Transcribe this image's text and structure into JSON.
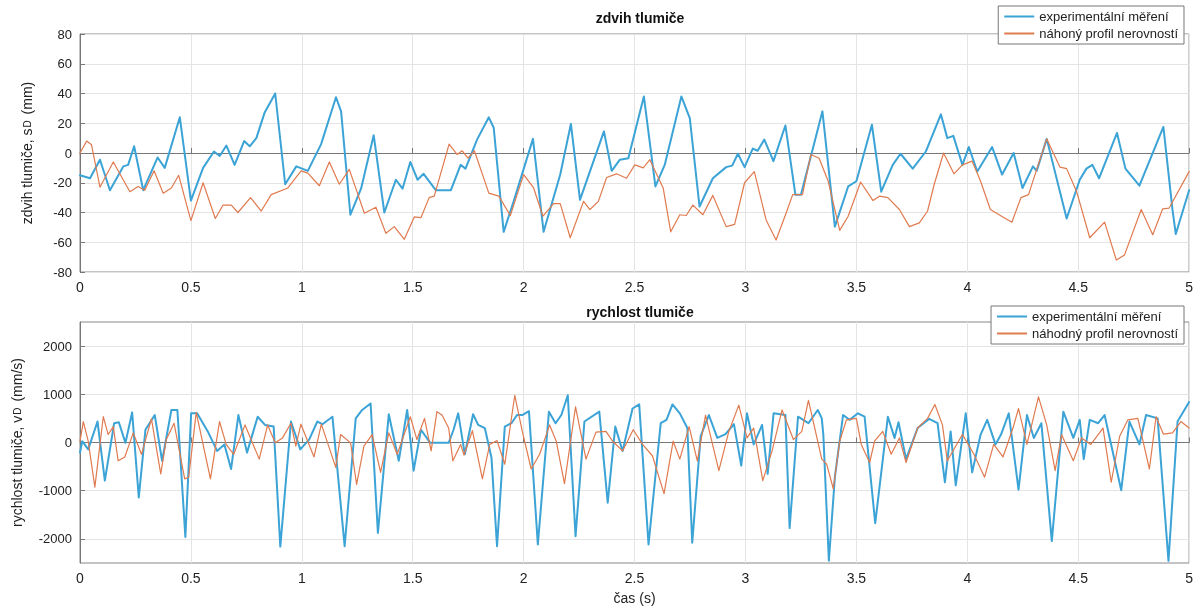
{
  "chart_data": [
    {
      "type": "line",
      "title": "zdvih tlumiče",
      "ylabel": "zdvih tlumiče, s$_{D}$ (mm)",
      "xlim": [
        0,
        5
      ],
      "xticks": [
        0,
        0.5,
        1,
        1.5,
        2,
        2.5,
        3,
        3.5,
        4,
        4.5,
        5
      ],
      "ylim": [
        -80,
        80
      ],
      "yticks": [
        -80,
        -60,
        -40,
        -20,
        0,
        20,
        40,
        60,
        80
      ],
      "grid": true,
      "legend": "top right",
      "marker": "none",
      "line_style": "solid",
      "series": [
        {
          "name": "experimentální měření",
          "color": "#3ba3d6",
          "x": [
            0,
            0.045,
            0.09,
            0.135,
            0.195,
            0.217,
            0.244,
            0.285,
            0.35,
            0.382,
            0.45,
            0.5,
            0.555,
            0.604,
            0.63,
            0.66,
            0.697,
            0.74,
            0.765,
            0.795,
            0.832,
            0.88,
            0.925,
            0.975,
            1.027,
            1.087,
            1.154,
            1.177,
            1.219,
            1.267,
            1.324,
            1.372,
            1.424,
            1.454,
            1.489,
            1.522,
            1.549,
            1.604,
            1.672,
            1.716,
            1.738,
            1.79,
            1.843,
            1.865,
            1.91,
            1.955,
            2.042,
            2.09,
            2.165,
            2.213,
            2.254,
            2.362,
            2.397,
            2.434,
            2.472,
            2.542,
            2.594,
            2.636,
            2.711,
            2.749,
            2.793,
            2.853,
            2.913,
            2.94,
            2.966,
            2.996,
            3.033,
            3.055,
            3.085,
            3.126,
            3.18,
            3.225,
            3.25,
            3.31,
            3.347,
            3.403,
            3.463,
            3.5,
            3.57,
            3.612,
            3.664,
            3.699,
            3.754,
            3.813,
            3.881,
            3.91,
            3.937,
            3.978,
            4.007,
            4.045,
            4.112,
            4.157,
            4.209,
            4.249,
            4.296,
            4.313,
            4.358,
            4.448,
            4.507,
            4.537,
            4.564,
            4.594,
            4.675,
            4.713,
            4.776,
            4.884,
            4.925,
            4.94,
            5
          ],
          "values": [
            -15,
            -17,
            -4.5,
            -25,
            -9,
            -8,
            4.5,
            -25,
            -3,
            -10,
            24,
            -32,
            -10,
            1,
            -2,
            5,
            -8,
            8,
            4.5,
            10,
            27,
            40,
            -21,
            -9,
            -12,
            6,
            37.5,
            28,
            -41.5,
            -24,
            12,
            -40,
            -18,
            -24,
            -6,
            -18,
            -14,
            -25,
            -25,
            -8,
            -10.5,
            9,
            24,
            17,
            -53,
            -32.5,
            9.5,
            -53,
            -14.5,
            19.5,
            -31.5,
            14.5,
            -12,
            -4.5,
            -3.5,
            38,
            -22.5,
            -8,
            38,
            23.5,
            -36,
            -17,
            -9.5,
            -8.5,
            -0.5,
            -9.5,
            3,
            1.5,
            9,
            -5.5,
            18.5,
            -28,
            -28,
            6.5,
            28,
            -49.5,
            -22.5,
            -19,
            19,
            -26,
            -8,
            -0.5,
            -10.5,
            1,
            26,
            10,
            11.5,
            -8,
            4,
            -12.5,
            4,
            -14.5,
            0,
            -23.5,
            -9,
            -12,
            9.5,
            -44,
            -18,
            -10.5,
            -8,
            -17,
            13.5,
            -10.5,
            -22,
            17.5,
            -38,
            -54.5,
            -25
          ]
        },
        {
          "name": "náhoný profil nerovností",
          "color": "#e07a4f",
          "x": [
            0,
            0.03,
            0.052,
            0.09,
            0.15,
            0.225,
            0.262,
            0.292,
            0.334,
            0.375,
            0.412,
            0.445,
            0.5,
            0.555,
            0.61,
            0.645,
            0.682,
            0.712,
            0.769,
            0.817,
            0.862,
            0.937,
            0.997,
            1.027,
            1.079,
            1.124,
            1.169,
            1.214,
            1.282,
            1.334,
            1.379,
            1.417,
            1.462,
            1.507,
            1.537,
            1.574,
            1.597,
            1.664,
            1.7,
            1.723,
            1.749,
            1.778,
            1.843,
            1.888,
            1.94,
            2,
            2.045,
            2.087,
            2.135,
            2.165,
            2.21,
            2.27,
            2.299,
            2.337,
            2.374,
            2.419,
            2.464,
            2.501,
            2.539,
            2.569,
            2.629,
            2.663,
            2.704,
            2.733,
            2.763,
            2.808,
            2.853,
            2.913,
            2.951,
            2.996,
            3.04,
            3.093,
            3.138,
            3.183,
            3.213,
            3.257,
            3.295,
            3.332,
            3.373,
            3.425,
            3.463,
            3.519,
            3.575,
            3.604,
            3.642,
            3.694,
            3.739,
            3.784,
            3.821,
            3.851,
            3.893,
            3.94,
            3.978,
            4.022,
            4.06,
            4.104,
            4.149,
            4.201,
            4.242,
            4.276,
            4.358,
            4.418,
            4.448,
            4.493,
            4.552,
            4.619,
            4.672,
            4.709,
            4.784,
            4.836,
            4.881,
            4.91,
            5
          ],
          "values": [
            0,
            8,
            5.5,
            -23,
            -6,
            -26,
            -22.5,
            -25,
            -12,
            -27,
            -23.5,
            -15,
            -45.5,
            -20,
            -44,
            -35,
            -35,
            -40,
            -30,
            -39,
            -28,
            -23.5,
            -12,
            -13.5,
            -22,
            -6,
            -21,
            -11,
            -40.5,
            -36.5,
            -54,
            -49.5,
            -58,
            -43,
            -43.5,
            -30,
            -29,
            6,
            -1,
            1.5,
            -3.5,
            1.5,
            -27,
            -29,
            -42,
            -14.5,
            -23.5,
            -42.5,
            -34,
            -34,
            -57,
            -32.5,
            -38,
            -32.5,
            -16.5,
            -14,
            -17,
            -8,
            -10,
            -4.5,
            -23.5,
            -53,
            -41.5,
            -42,
            -35,
            -41.5,
            -28.5,
            -49.5,
            -48,
            -20,
            -12.5,
            -45,
            -58.5,
            -40.5,
            -28,
            -28,
            -1,
            -3.5,
            -19,
            -52,
            -42.5,
            -19.5,
            -32,
            -29,
            -30,
            -38,
            -49.5,
            -47,
            -39,
            -21,
            0,
            -14,
            -8,
            -5.5,
            -19,
            -38,
            -42,
            -46.5,
            -30,
            -28,
            9.5,
            -9.5,
            -10.5,
            -26,
            -57,
            -46.5,
            -72,
            -68.5,
            -38,
            -55,
            -37.5,
            -37,
            -12.5
          ]
        }
      ]
    },
    {
      "type": "line",
      "title": "rychlost tlumiče",
      "xlabel": "čas (s)",
      "ylabel": "rychlost tlumiče, v$_{D}$ (mm/s)",
      "xlim": [
        0,
        5
      ],
      "xticks": [
        0,
        0.5,
        1,
        1.5,
        2,
        2.5,
        3,
        3.5,
        4,
        4.5,
        5
      ],
      "ylim": [
        -2500,
        2500
      ],
      "yticks": [
        -2000,
        -1000,
        0,
        1000,
        2000
      ],
      "grid": true,
      "legend": "top right",
      "marker": "none",
      "line_style": "solid",
      "series": [
        {
          "name": "experimentální měření",
          "color": "#3ba3d6",
          "x": [
            0,
            0.01,
            0.037,
            0.079,
            0.112,
            0.154,
            0.175,
            0.205,
            0.235,
            0.265,
            0.295,
            0.337,
            0.37,
            0.412,
            0.439,
            0.475,
            0.501,
            0.528,
            0.576,
            0.618,
            0.651,
            0.681,
            0.714,
            0.753,
            0.801,
            0.834,
            0.873,
            0.903,
            0.951,
            0.993,
            1.033,
            1.07,
            1.093,
            1.138,
            1.193,
            1.243,
            1.272,
            1.31,
            1.343,
            1.392,
            1.437,
            1.475,
            1.504,
            1.537,
            1.579,
            1.662,
            1.684,
            1.705,
            1.735,
            1.772,
            1.795,
            1.825,
            1.855,
            1.88,
            1.915,
            1.945,
            1.97,
            1.994,
            2.024,
            2.064,
            2.114,
            2.144,
            2.17,
            2.199,
            2.234,
            2.274,
            2.341,
            2.379,
            2.413,
            2.446,
            2.491,
            2.521,
            2.563,
            2.618,
            2.644,
            2.671,
            2.704,
            2.738,
            2.76,
            2.798,
            2.835,
            2.873,
            2.91,
            2.948,
            2.981,
            3.007,
            3.037,
            3.075,
            3.1,
            3.127,
            3.18,
            3.199,
            3.237,
            3.284,
            3.326,
            3.344,
            3.351,
            3.376,
            3.403,
            3.44,
            3.47,
            3.507,
            3.537,
            3.585,
            3.642,
            3.672,
            3.69,
            3.724,
            3.776,
            3.828,
            3.866,
            3.899,
            3.925,
            3.948,
            3.993,
            4.022,
            4.06,
            4.09,
            4.127,
            4.152,
            4.187,
            4.231,
            4.269,
            4.3,
            4.334,
            4.381,
            4.433,
            4.478,
            4.507,
            4.525,
            4.552,
            4.59,
            4.619,
            4.694,
            4.731,
            4.776,
            4.806,
            4.858,
            4.907,
            4.948,
            5
          ],
          "values": [
            -210,
            27,
            -143,
            435,
            -790,
            400,
            420,
            -7,
            625,
            -1140,
            265,
            570,
            -380,
            675,
            675,
            -1960,
            605,
            605,
            230,
            -175,
            -40,
            -550,
            570,
            -210,
            535,
            365,
            330,
            -2160,
            435,
            -143,
            61,
            435,
            380,
            535,
            -2150,
            500,
            675,
            810,
            -1875,
            585,
            -380,
            675,
            -585,
            265,
            -7,
            -7,
            265,
            605,
            -245,
            585,
            365,
            300,
            -315,
            -2150,
            330,
            400,
            570,
            570,
            650,
            -2115,
            640,
            400,
            570,
            980,
            -1945,
            435,
            640,
            -1250,
            330,
            -175,
            705,
            790,
            -2115,
            400,
            470,
            790,
            605,
            300,
            -2080,
            130,
            570,
            95,
            175,
            380,
            -480,
            605,
            -40,
            365,
            -650,
            605,
            570,
            -1775,
            535,
            400,
            675,
            500,
            165,
            -2450,
            -720,
            570,
            470,
            605,
            535,
            -1675,
            535,
            95,
            420,
            -345,
            300,
            490,
            400,
            -825,
            230,
            -890,
            605,
            -620,
            165,
            470,
            -40,
            165,
            605,
            -980,
            570,
            95,
            400,
            -2045,
            640,
            95,
            470,
            -345,
            470,
            400,
            570,
            -990,
            435,
            -40,
            570,
            500,
            -2455,
            435,
            840
          ]
        },
        {
          "name": "náhodný profil nerovností",
          "color": "#e07a4f",
          "x": [
            0,
            0.015,
            0.037,
            0.067,
            0.105,
            0.127,
            0.15,
            0.172,
            0.202,
            0.24,
            0.277,
            0.322,
            0.364,
            0.389,
            0.424,
            0.472,
            0.49,
            0.524,
            0.588,
            0.629,
            0.659,
            0.693,
            0.744,
            0.808,
            0.846,
            0.88,
            0.913,
            0.951,
            0.973,
            0.996,
            1.055,
            1.088,
            1.153,
            1.175,
            1.22,
            1.247,
            1.28,
            1.317,
            1.355,
            1.392,
            1.43,
            1.489,
            1.519,
            1.553,
            1.583,
            1.609,
            1.632,
            1.662,
            1.681,
            1.716,
            1.731,
            1.769,
            1.814,
            1.847,
            1.88,
            1.915,
            1.96,
            1.994,
            2.034,
            2.072,
            2.117,
            2.147,
            2.184,
            2.234,
            2.281,
            2.326,
            2.371,
            2.401,
            2.446,
            2.494,
            2.536,
            2.581,
            2.633,
            2.674,
            2.704,
            2.746,
            2.783,
            2.82,
            2.88,
            2.925,
            2.97,
            3.007,
            3.037,
            3.078,
            3.12,
            3.165,
            3.216,
            3.254,
            3.284,
            3.344,
            3.366,
            3.396,
            3.425,
            3.455,
            3.5,
            3.522,
            3.56,
            3.582,
            3.619,
            3.657,
            3.694,
            3.724,
            3.776,
            3.821,
            3.854,
            3.888,
            3.91,
            3.978,
            4.03,
            4.078,
            4.119,
            4.161,
            4.206,
            4.231,
            4.269,
            4.321,
            4.358,
            4.396,
            4.425,
            4.478,
            4.515,
            4.557,
            4.612,
            4.649,
            4.687,
            4.724,
            4.769,
            4.821,
            4.851,
            4.884,
            4.925,
            4.963,
            5
          ],
          "values": [
            27,
            435,
            27,
            -925,
            535,
            165,
            330,
            -380,
            -300,
            200,
            -245,
            490,
            -650,
            61,
            400,
            -755,
            -720,
            625,
            -755,
            435,
            -40,
            -245,
            365,
            -345,
            365,
            -7,
            95,
            400,
            -75,
            380,
            -300,
            380,
            -515,
            165,
            -7,
            -870,
            -75,
            165,
            -620,
            200,
            -245,
            535,
            61,
            500,
            -175,
            640,
            570,
            300,
            -380,
            -40,
            -260,
            245,
            -755,
            -40,
            40,
            -450,
            980,
            230,
            -550,
            -245,
            365,
            27,
            -855,
            740,
            -345,
            215,
            230,
            27,
            -175,
            265,
            -40,
            -280,
            -1060,
            27,
            -345,
            330,
            -380,
            570,
            -585,
            230,
            775,
            95,
            300,
            -790,
            -175,
            675,
            61,
            230,
            875,
            -345,
            -450,
            -960,
            27,
            470,
            500,
            -40,
            -415,
            27,
            230,
            -245,
            95,
            -415,
            300,
            500,
            790,
            365,
            -380,
            165,
            -245,
            -720,
            -40,
            -300,
            300,
            705,
            -40,
            945,
            365,
            -585,
            165,
            -380,
            95,
            -40,
            300,
            -825,
            130,
            470,
            500,
            -550,
            535,
            175,
            200,
            435,
            300
          ]
        }
      ]
    }
  ]
}
